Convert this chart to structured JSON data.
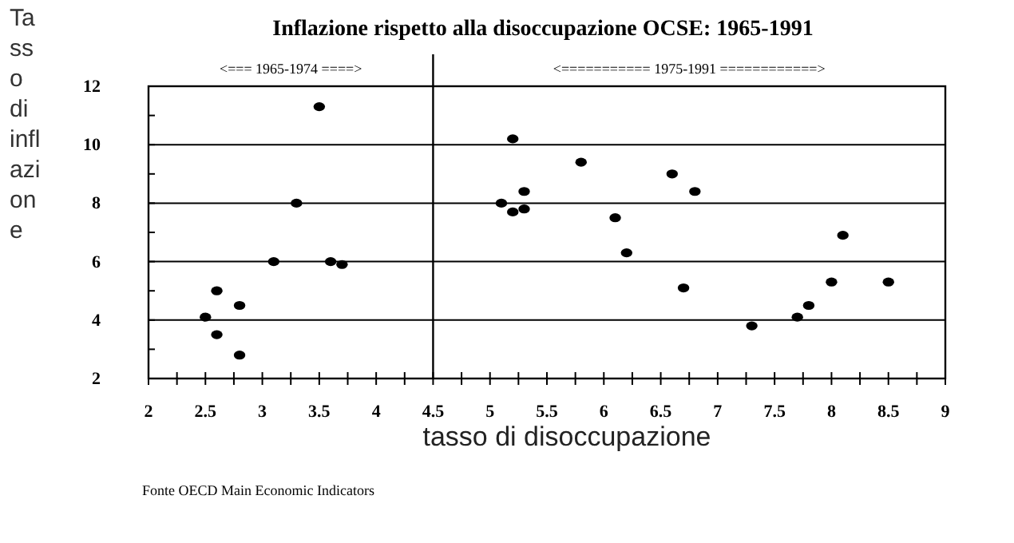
{
  "chart_data": {
    "type": "scatter",
    "title": "Inflazione rispetto alla disoccupazione OCSE: 1965-1991",
    "xlabel": "tasso di disoccupazione",
    "ylabel": "Tasso di inflazione",
    "x": [
      2.5,
      2.6,
      2.6,
      2.8,
      2.8,
      3.1,
      3.3,
      3.5,
      3.6,
      3.7,
      5.1,
      5.2,
      5.2,
      5.3,
      5.3,
      5.8,
      6.1,
      6.2,
      6.6,
      6.7,
      6.8,
      7.3,
      7.7,
      7.8,
      8.0,
      8.1,
      8.5
    ],
    "series": [
      {
        "color": "#000000",
        "values": [
          4.1,
          5.0,
          3.5,
          4.5,
          2.8,
          6.0,
          8.0,
          11.3,
          6.0,
          5.9,
          8.0,
          10.2,
          7.7,
          8.4,
          7.8,
          9.4,
          7.5,
          6.3,
          9.0,
          5.1,
          8.4,
          3.8,
          4.1,
          4.5,
          5.3,
          6.9,
          5.3
        ]
      }
    ],
    "xlim": [
      2,
      9
    ],
    "ylim": [
      2,
      12
    ],
    "xticks": [
      2,
      {
        "value": 2.25,
        "label": null
      },
      2.5,
      {
        "value": 2.75,
        "label": null
      },
      3,
      {
        "value": 3.25,
        "label": null
      },
      3.5,
      {
        "value": 3.75,
        "label": null
      },
      4,
      {
        "value": 4.25,
        "label": null
      },
      4.5,
      {
        "value": 4.75,
        "label": null
      },
      5,
      {
        "value": 5.25,
        "label": null
      },
      5.5,
      {
        "value": 5.75,
        "label": null
      },
      6,
      {
        "value": 6.25,
        "label": null
      },
      6.5,
      {
        "value": 6.75,
        "label": null
      },
      7,
      {
        "value": 7.25,
        "label": null
      },
      7.5,
      {
        "value": 7.75,
        "label": null
      },
      8,
      {
        "value": 8.25,
        "label": null
      },
      8.5,
      {
        "value": 8.75,
        "label": null
      },
      9
    ],
    "yticks": [
      2,
      {
        "value": 3,
        "label": null
      },
      4,
      {
        "value": 5,
        "label": null
      },
      6,
      {
        "value": 7,
        "label": null
      },
      8,
      {
        "value": 9,
        "label": null
      },
      10,
      {
        "value": 11,
        "label": null
      },
      12
    ],
    "grid": "y",
    "marker": "circle",
    "ref_lines": [
      {
        "axis": "x",
        "value": 4.5,
        "label": null,
        "color": "#000000"
      }
    ],
    "annotations": [
      "<===  1965-1974  ====>",
      "<===========  1975-1991  ============>",
      "Fonte OECD Main Economic Indicators"
    ]
  }
}
